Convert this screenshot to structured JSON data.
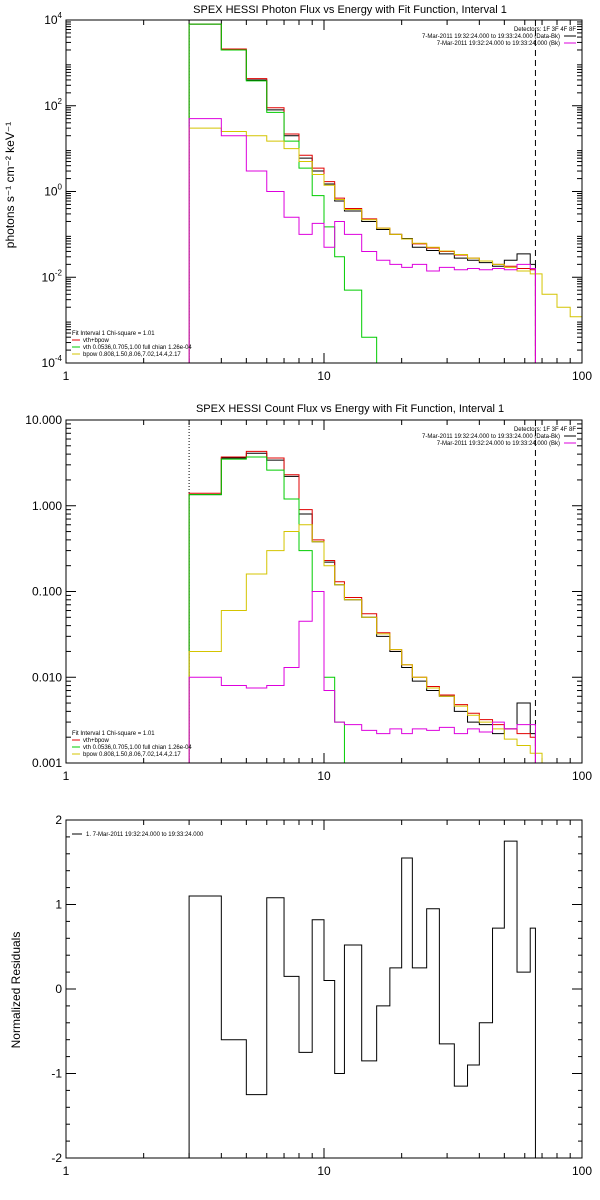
{
  "colors": {
    "black": "#000000",
    "red": "#e00000",
    "green": "#00cc00",
    "yellow": "#d4c400",
    "magenta": "#dd00dd"
  },
  "chart_data": [
    {
      "type": "line",
      "title": "SPEX HESSI Photon Flux vs Energy with Fit Function, Interval 1",
      "xlabel": "",
      "ylabel": "photons s⁻¹ cm⁻² keV⁻¹",
      "xscale": "log",
      "yscale": "log",
      "xlim": [
        1,
        100
      ],
      "ylim": [
        0.0001,
        10000
      ],
      "x_ticks": [
        {
          "v": 1,
          "label": "1"
        },
        {
          "v": 10,
          "label": "10"
        },
        {
          "v": 100,
          "label": "100"
        }
      ],
      "y_ticks": [
        {
          "v": 0.0001,
          "base": "10",
          "exp": "-4"
        },
        {
          "v": 0.01,
          "base": "10",
          "exp": "-2"
        },
        {
          "v": 1,
          "base": "10",
          "exp": "0"
        },
        {
          "v": 100,
          "base": "10",
          "exp": "2"
        },
        {
          "v": 10000,
          "base": "10",
          "exp": "4"
        }
      ],
      "detectors": "Detectors: 1F 3F 4F 8F",
      "legend_right": [
        {
          "text": "7-Mar-2011 19:32:24.000 to 19:33:24.000 (Data-Bk)",
          "color": "#000000"
        },
        {
          "text": "7-Mar-2011 19:32:24.000 to 19:33:24.000 (Bk)",
          "color": "#dd00dd"
        }
      ],
      "fit_header": "Fit Interval 1   Chi-square = 1.01",
      "legend_left": [
        {
          "text": "vth+bpow",
          "color": "#e00000"
        },
        {
          "text": "vth 0.0536,0.705,1.00  full chian 1.26e-04",
          "color": "#00cc00"
        },
        {
          "text": "bpow 0.808,1.50,8.06,7.02,14.4,2.17",
          "color": "#d4c400"
        }
      ],
      "vlines": [
        {
          "x": 3,
          "style": "dotted"
        },
        {
          "x": 66,
          "style": "dashed"
        }
      ],
      "series": [
        {
          "name": "Data-Bk",
          "color": "#000000",
          "edges": [
            3,
            4,
            5,
            6,
            7,
            8,
            9,
            10,
            11,
            12,
            14,
            16,
            18,
            20,
            22,
            25,
            28,
            32,
            36,
            40,
            45,
            50,
            56,
            63,
            66
          ],
          "values": [
            8000,
            2000,
            400,
            80,
            20,
            6,
            3,
            1.5,
            0.6,
            0.35,
            0.2,
            0.13,
            0.1,
            0.08,
            0.05,
            0.042,
            0.035,
            0.028,
            0.025,
            0.022,
            0.018,
            0.025,
            0.035,
            0.02
          ]
        },
        {
          "name": "vth+bpow",
          "color": "#e00000",
          "edges": [
            3,
            4,
            5,
            6,
            7,
            8,
            9,
            10,
            11,
            12,
            14,
            16,
            18,
            20,
            22,
            25,
            28,
            32,
            36,
            40,
            45,
            50,
            56,
            63,
            66
          ],
          "values": [
            8000,
            2100,
            430,
            90,
            22,
            7,
            3.5,
            1.7,
            0.7,
            0.4,
            0.23,
            0.14,
            0.1,
            0.078,
            0.06,
            0.048,
            0.04,
            0.033,
            0.028,
            0.024,
            0.02,
            0.018,
            0.016,
            0.015
          ]
        },
        {
          "name": "vth",
          "color": "#00cc00",
          "edges": [
            3,
            4,
            5,
            6,
            7,
            8,
            9,
            10,
            11,
            12,
            14,
            16
          ],
          "values": [
            8000,
            2000,
            380,
            70,
            15,
            3.5,
            0.8,
            0.15,
            0.03,
            0.005,
            0.0004
          ]
        },
        {
          "name": "bpow",
          "color": "#d4c400",
          "edges": [
            3,
            4,
            5,
            6,
            7,
            8,
            9,
            10,
            11,
            12,
            14,
            16,
            18,
            20,
            22,
            25,
            28,
            32,
            36,
            40,
            45,
            50,
            56,
            63,
            70,
            80,
            90,
            100
          ],
          "values": [
            30,
            25,
            20,
            15,
            10,
            5,
            2.5,
            1.4,
            0.65,
            0.38,
            0.22,
            0.14,
            0.1,
            0.078,
            0.062,
            0.05,
            0.041,
            0.034,
            0.028,
            0.024,
            0.02,
            0.017,
            0.014,
            0.012,
            0.004,
            0.002,
            0.0012
          ]
        },
        {
          "name": "Bk",
          "color": "#dd00dd",
          "edges": [
            3,
            4,
            5,
            6,
            7,
            8,
            9,
            10,
            11,
            12,
            14,
            16,
            18,
            20,
            22,
            25,
            28,
            32,
            36,
            40,
            45,
            50,
            56,
            63,
            66
          ],
          "values": [
            50,
            20,
            3,
            1,
            0.25,
            0.1,
            0.18,
            0.05,
            0.2,
            0.1,
            0.04,
            0.025,
            0.02,
            0.017,
            0.02,
            0.014,
            0.017,
            0.015,
            0.016,
            0.015,
            0.016,
            0.015,
            0.02,
            0.016
          ]
        }
      ]
    },
    {
      "type": "line",
      "title": "SPEX HESSI Count Flux vs Energy with Fit Function, Interval 1",
      "xlabel": "",
      "ylabel": "",
      "xscale": "log",
      "yscale": "log",
      "xlim": [
        1,
        100
      ],
      "ylim": [
        0.001,
        10
      ],
      "x_ticks": [
        {
          "v": 1,
          "label": "1"
        },
        {
          "v": 10,
          "label": "10"
        },
        {
          "v": 100,
          "label": "100"
        }
      ],
      "y_ticks": [
        {
          "v": 0.001,
          "label": "0.001"
        },
        {
          "v": 0.01,
          "label": "0.010"
        },
        {
          "v": 0.1,
          "label": "0.100"
        },
        {
          "v": 1,
          "label": "1.000"
        },
        {
          "v": 10,
          "label": "10.000"
        }
      ],
      "detectors": "Detectors: 1F 3F 4F 8F",
      "legend_right": [
        {
          "text": "7-Mar-2011 19:32:24.000 to 19:33:24.000 (Data-Bk)",
          "color": "#000000"
        },
        {
          "text": "7-Mar-2011 19:32:24.000 to 19:33:24.000 (Bk)",
          "color": "#dd00dd"
        }
      ],
      "fit_header": "Fit Interval 1   Chi-square = 1.01",
      "legend_left": [
        {
          "text": "vth+bpow",
          "color": "#e00000"
        },
        {
          "text": "vth 0.0536,0.705,1.00  full chian 1.26e-04",
          "color": "#00cc00"
        },
        {
          "text": "bpow 0.808,1.50,8.06,7.02,14.4,2.17",
          "color": "#d4c400"
        }
      ],
      "vlines": [
        {
          "x": 3,
          "style": "dotted"
        },
        {
          "x": 66,
          "style": "dashed"
        }
      ],
      "series": [
        {
          "name": "Data-Bk",
          "color": "#000000",
          "edges": [
            3,
            4,
            5,
            6,
            7,
            8,
            9,
            10,
            11,
            12,
            14,
            16,
            18,
            20,
            22,
            25,
            28,
            32,
            36,
            40,
            45,
            50,
            56,
            63,
            66
          ],
          "values": [
            1.35,
            3.6,
            4.1,
            3.4,
            2.2,
            0.8,
            0.38,
            0.22,
            0.12,
            0.08,
            0.05,
            0.03,
            0.02,
            0.013,
            0.009,
            0.007,
            0.006,
            0.004,
            0.003,
            0.0028,
            0.0022,
            0.0025,
            0.005,
            0.0022
          ]
        },
        {
          "name": "vth+bpow",
          "color": "#e00000",
          "edges": [
            3,
            4,
            5,
            6,
            7,
            8,
            9,
            10,
            11,
            12,
            14,
            16,
            18,
            20,
            22,
            25,
            28,
            32,
            36,
            40,
            45,
            50,
            56,
            63,
            66
          ],
          "values": [
            1.4,
            3.7,
            4.3,
            3.6,
            2.3,
            0.9,
            0.4,
            0.23,
            0.13,
            0.085,
            0.055,
            0.033,
            0.021,
            0.014,
            0.01,
            0.0078,
            0.0062,
            0.0048,
            0.0038,
            0.0032,
            0.0028,
            0.0025,
            0.0022,
            0.002
          ]
        },
        {
          "name": "vth",
          "color": "#00cc00",
          "edges": [
            3,
            4,
            5,
            6,
            7,
            8,
            9,
            10,
            11,
            12
          ],
          "values": [
            1.35,
            3.5,
            3.7,
            2.6,
            1.2,
            0.3,
            0.1,
            0.01,
            0.003
          ]
        },
        {
          "name": "bpow",
          "color": "#d4c400",
          "edges": [
            3,
            4,
            5,
            6,
            7,
            8,
            9,
            10,
            11,
            12,
            14,
            16,
            18,
            20,
            22,
            25,
            28,
            32,
            36,
            40,
            45,
            50,
            56,
            63,
            70
          ],
          "values": [
            0.02,
            0.06,
            0.16,
            0.3,
            0.5,
            0.6,
            0.38,
            0.2,
            0.12,
            0.08,
            0.05,
            0.032,
            0.021,
            0.014,
            0.01,
            0.0075,
            0.006,
            0.0046,
            0.0036,
            0.003,
            0.0025,
            0.0019,
            0.0016,
            0.0013
          ]
        },
        {
          "name": "Bk",
          "color": "#dd00dd",
          "edges": [
            3,
            4,
            5,
            6,
            7,
            8,
            9,
            10,
            11,
            12,
            14,
            16,
            18,
            20,
            22,
            25,
            28,
            32,
            36,
            40,
            45,
            50,
            56,
            63,
            66
          ],
          "values": [
            0.01,
            0.008,
            0.0075,
            0.008,
            0.013,
            0.045,
            0.1,
            0.007,
            0.003,
            0.0028,
            0.0024,
            0.0022,
            0.0025,
            0.0022,
            0.0025,
            0.0024,
            0.0026,
            0.0022,
            0.0025,
            0.0023,
            0.003,
            0.0025,
            0.0028,
            0.0028
          ]
        }
      ]
    },
    {
      "type": "line",
      "title": "",
      "xlabel": "",
      "ylabel": "Normalized Residuals",
      "xscale": "log",
      "yscale": "linear",
      "xlim": [
        1,
        100
      ],
      "ylim": [
        -2,
        2
      ],
      "x_ticks": [
        {
          "v": 1,
          "label": "1"
        },
        {
          "v": 10,
          "label": "10"
        },
        {
          "v": 100,
          "label": "100"
        }
      ],
      "y_ticks": [
        {
          "v": -2,
          "label": "-2"
        },
        {
          "v": -1,
          "label": "-1"
        },
        {
          "v": 0,
          "label": "0"
        },
        {
          "v": 1,
          "label": "1"
        },
        {
          "v": 2,
          "label": "2"
        }
      ],
      "legend_right": [
        {
          "text": "1.  7-Mar-2011 19:32:24.000 to 19:33:24.000",
          "color": "#000000"
        }
      ],
      "series": [
        {
          "name": "1.  7-Mar-2011 19:32:24.000 to 19:33:24.000",
          "color": "#000000",
          "edges": [
            3,
            4,
            5,
            6,
            7,
            8,
            9,
            10,
            11,
            12,
            14,
            16,
            18,
            20,
            22,
            25,
            28,
            32,
            36,
            40,
            45,
            50,
            56,
            63,
            66
          ],
          "values": [
            1.1,
            -0.6,
            -1.25,
            1.08,
            0.15,
            -0.75,
            0.82,
            0.1,
            -1.0,
            0.52,
            -0.85,
            -0.2,
            0.25,
            1.55,
            0.25,
            0.95,
            -0.65,
            -1.15,
            -0.9,
            -0.4,
            0.72,
            1.75,
            0.2,
            0.72
          ]
        }
      ]
    }
  ]
}
